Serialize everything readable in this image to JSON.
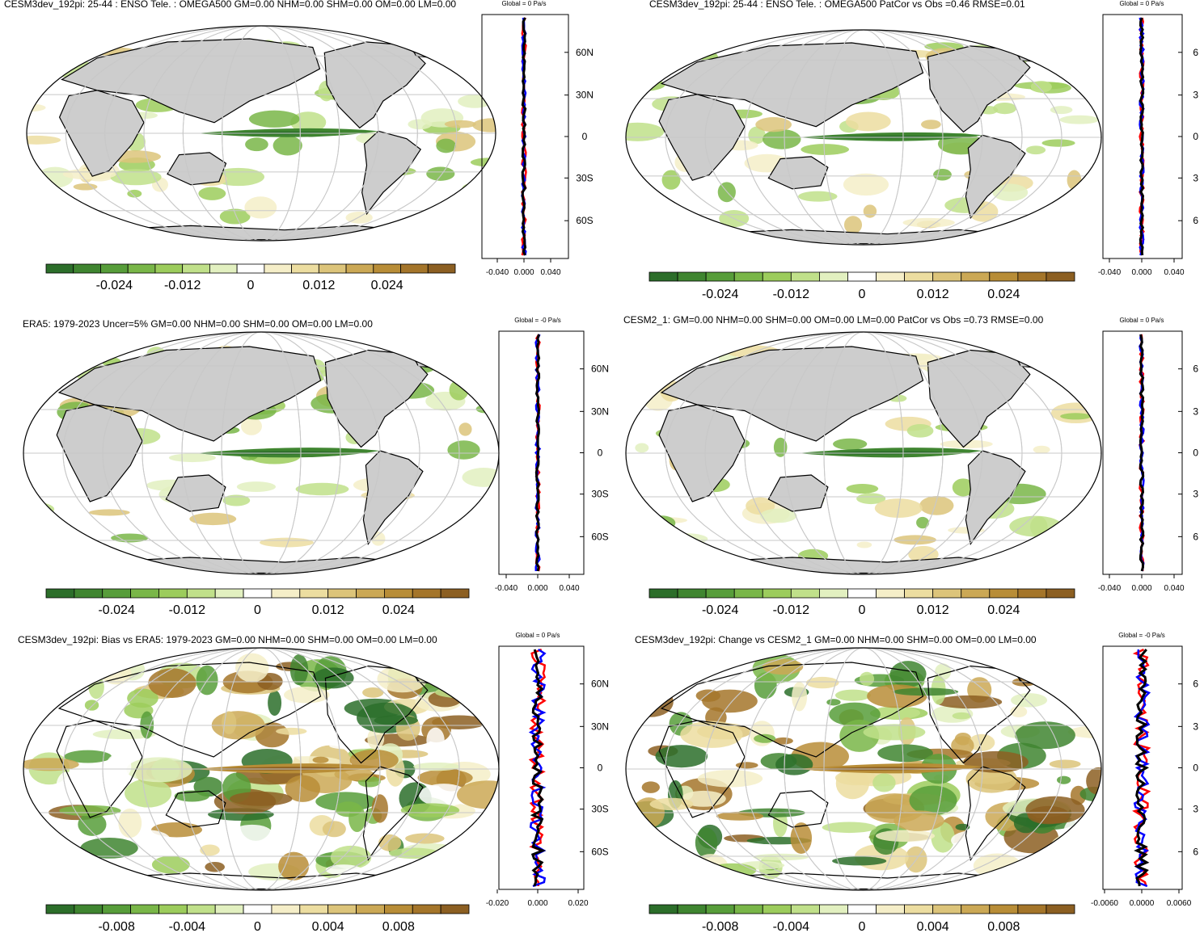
{
  "panels": [
    {
      "title": "CESM3dev_192pi: 25-44 : ENSO Tele. : OMEGA500 GM=0.00 NHM=0.00 SHM=0.00 OM=0.00 LM=0.00",
      "colorbar_ticks": [
        "-0.024",
        "-0.012",
        "0",
        "0.012",
        "0.024"
      ],
      "profile_title": "Global = 0 Pa/s",
      "profile_xticks": [
        "-0.040",
        "0.000",
        "0.040"
      ],
      "lat_ticks": [
        "60N",
        "30N",
        "0",
        "30S",
        "60S"
      ]
    },
    {
      "title": "CESM3dev_192pi: 25-44 : ENSO Tele. : OMEGA500 PatCor vs Obs =0.46 RMSE=0.01",
      "colorbar_ticks": [
        "-0.024",
        "-0.012",
        "0",
        "0.012",
        "0.024"
      ],
      "profile_title": "Global = 0 Pa/s",
      "profile_xticks": [
        "-0.040",
        "0.000",
        "0.040"
      ],
      "lat_ticks": [
        "6",
        "3",
        "0",
        "3",
        "6"
      ]
    },
    {
      "title": "ERA5: 1979-2023 Uncer=5% GM=0.00 NHM=0.00 SHM=0.00 OM=0.00 LM=0.00",
      "colorbar_ticks": [
        "-0.024",
        "-0.012",
        "0",
        "0.012",
        "0.024"
      ],
      "profile_title": "Global = -0 Pa/s",
      "profile_xticks": [
        "-0.040",
        "0.000",
        "0.040"
      ],
      "lat_ticks": [
        "60N",
        "30N",
        "0",
        "30S",
        "60S"
      ]
    },
    {
      "title": "CESM2_1: GM=0.00 NHM=0.00 SHM=0.00 OM=0.00 LM=0.00 PatCor vs Obs =0.73 RMSE=0.00",
      "colorbar_ticks": [
        "-0.024",
        "-0.012",
        "0",
        "0.012",
        "0.024"
      ],
      "profile_title": "Global = 0 Pa/s",
      "profile_xticks": [
        "-0.040",
        "0.000",
        "0.040"
      ],
      "lat_ticks": [
        "6",
        "3",
        "0",
        "3",
        "6"
      ]
    },
    {
      "title": "CESM3dev_192pi: Bias vs ERA5: 1979-2023 GM=0.00 NHM=0.00 SHM=0.00 OM=0.00 LM=0.00",
      "colorbar_ticks": [
        "-0.008",
        "-0.004",
        "0",
        "0.004",
        "0.008"
      ],
      "profile_title": "Global = 0 Pa/s",
      "profile_xticks": [
        "-0.020",
        "0.000",
        "0.020"
      ],
      "lat_ticks": [
        "60N",
        "30N",
        "0",
        "30S",
        "60S"
      ]
    },
    {
      "title": "CESM3dev_192pi: Change vs CESM2_1 GM=0.00 NHM=0.00 SHM=0.00 OM=0.00 LM=0.00",
      "colorbar_ticks": [
        "-0.008",
        "-0.004",
        "0",
        "0.004",
        "0.008"
      ],
      "profile_title": "Global = -0 Pa/s",
      "profile_xticks": [
        "-0.0060",
        "0.0000",
        "0.0060"
      ],
      "lat_ticks": [
        "6",
        "3",
        "0",
        "3",
        "6"
      ]
    }
  ],
  "colors": {
    "palette": [
      "#2c6e2a",
      "#3f8530",
      "#579d3a",
      "#79b648",
      "#9ccc5c",
      "#c0e08a",
      "#e2f0c0",
      "#ffffff",
      "#f5eec8",
      "#ecdda0",
      "#dcc47a",
      "#cba855",
      "#b88d37",
      "#a4752a",
      "#8c5f22"
    ],
    "land": "#cdcdcd",
    "coast": "#000000",
    "grid": "#c8c8c8",
    "profile_lines": [
      "#ff0000",
      "#0000ff",
      "#000000"
    ]
  }
}
